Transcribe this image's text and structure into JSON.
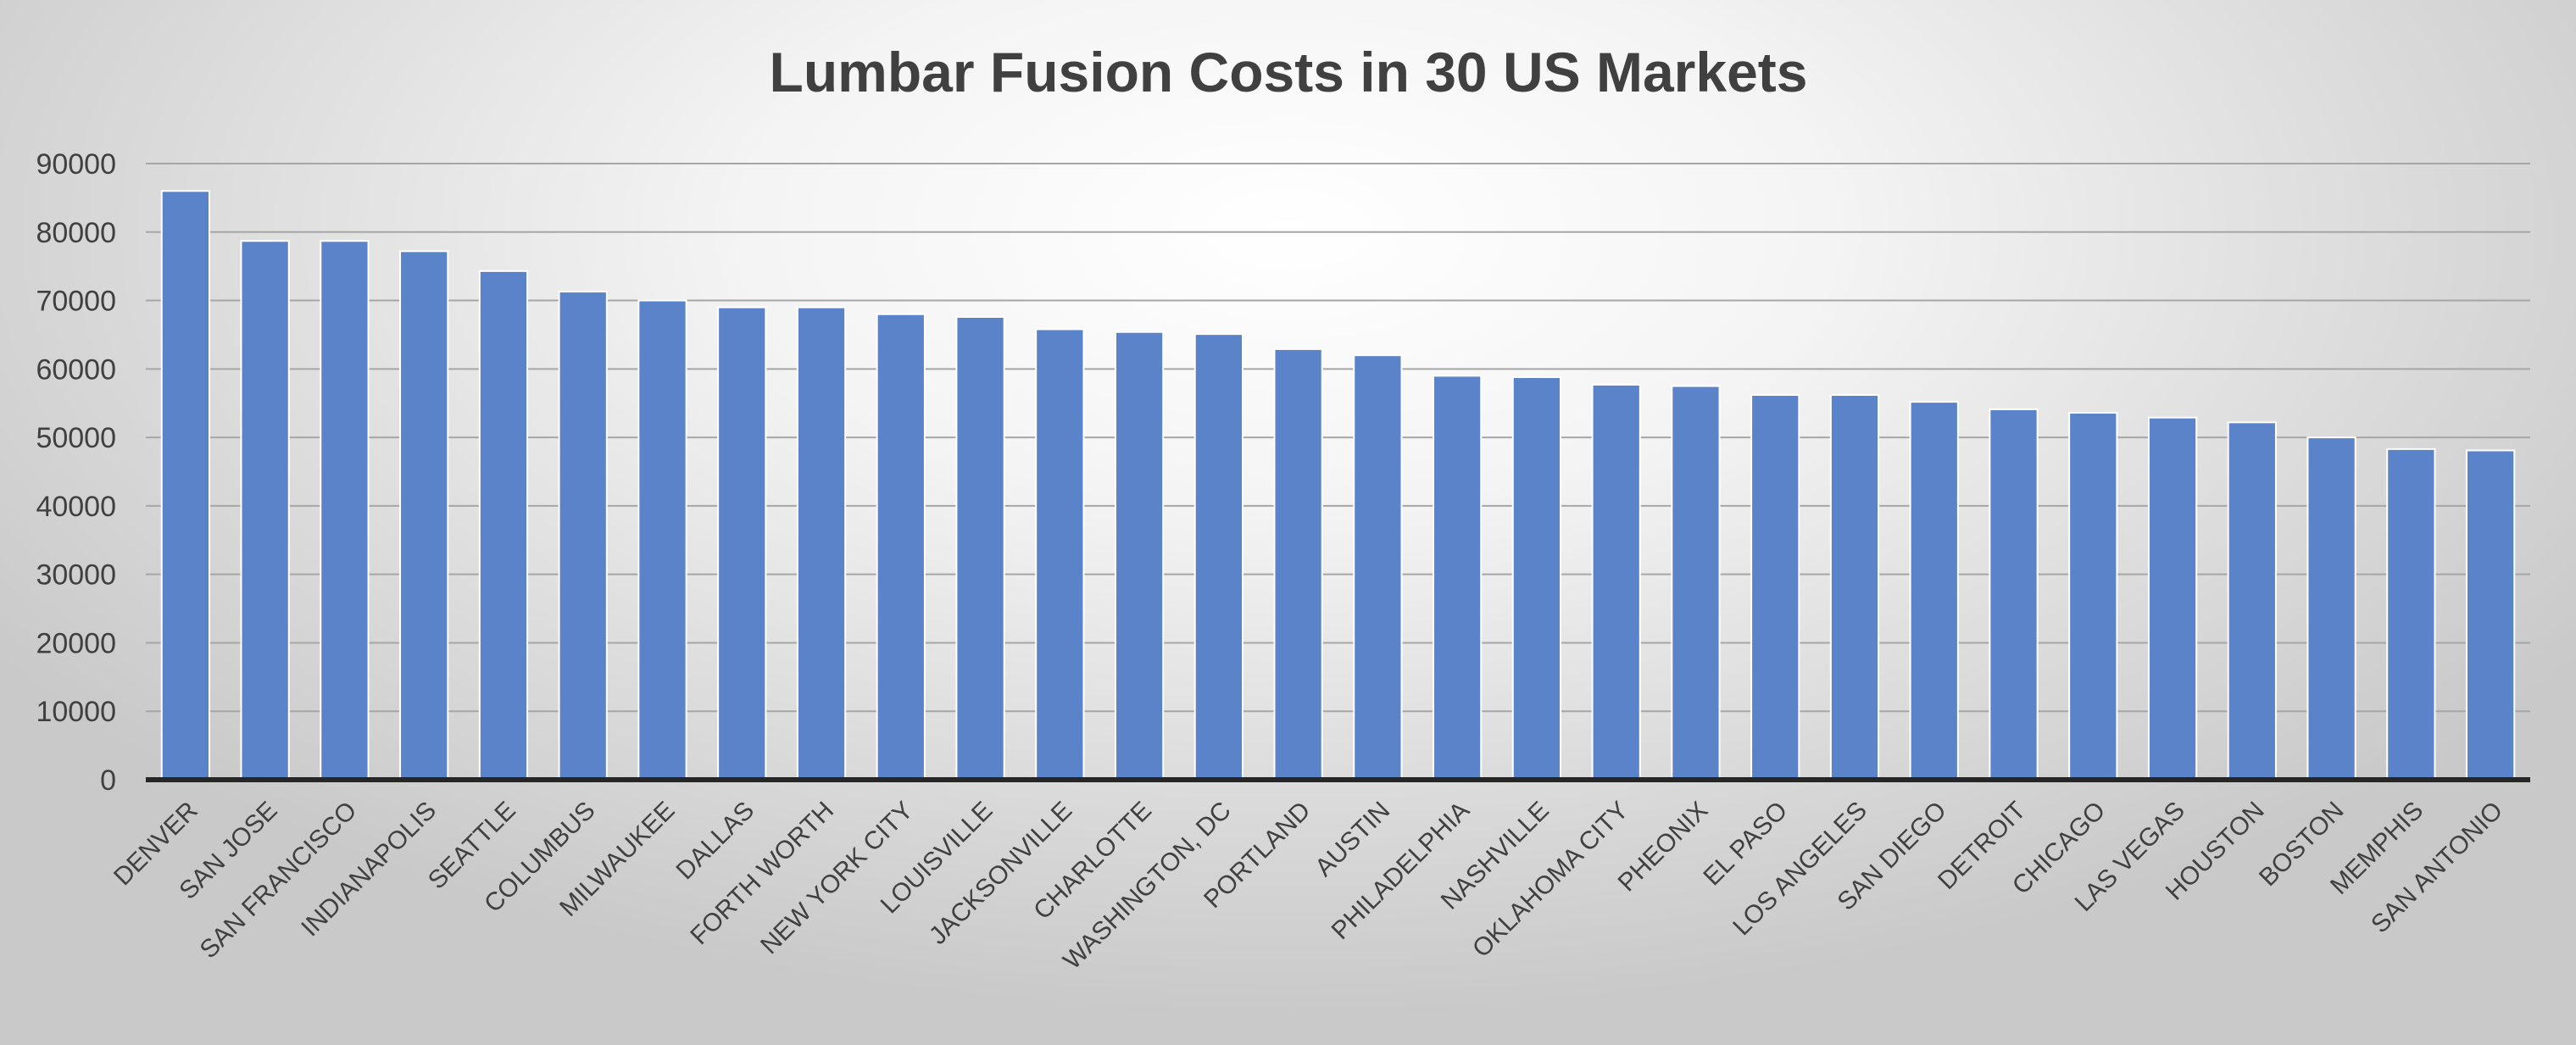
{
  "chart_data": {
    "type": "bar",
    "title": "Lumbar Fusion Costs in 30 US Markets",
    "xlabel": "",
    "ylabel": "",
    "ylim": [
      0,
      90000
    ],
    "yticks": [
      0,
      10000,
      20000,
      30000,
      40000,
      50000,
      60000,
      70000,
      80000,
      90000
    ],
    "grid": true,
    "legend": "none",
    "bar_color": "#5b83c9",
    "categories": [
      "DENVER",
      "SAN JOSE",
      "SAN FRANCISCO",
      "INDIANAPOLIS",
      "SEATTLE",
      "COLUMBUS",
      "MILWAUKEE",
      "DALLAS",
      "FORTH WORTH",
      "NEW YORK CITY",
      "LOUISVILLE",
      "JACKSONVILLE",
      "CHARLOTTE",
      "WASHINGTON, DC",
      "PORTLAND",
      "AUSTIN",
      "PHILADELPHIA",
      "NASHVILLE",
      "OKLAHOMA CITY",
      "PHEONIX",
      "EL PASO",
      "LOS ANGELES",
      "SAN DIEGO",
      "DETROIT",
      "CHICAGO",
      "LAS VEGAS",
      "HOUSTON",
      "BOSTON",
      "MEMPHIS",
      "SAN ANTONIO"
    ],
    "values": [
      86000,
      78700,
      78700,
      77200,
      74300,
      71300,
      70000,
      69000,
      69000,
      68000,
      67600,
      65800,
      65400,
      65100,
      62900,
      62000,
      59000,
      58800,
      57700,
      57500,
      56200,
      56200,
      55200,
      54100,
      53600,
      52900,
      52200,
      50000,
      48300,
      48100
    ]
  }
}
